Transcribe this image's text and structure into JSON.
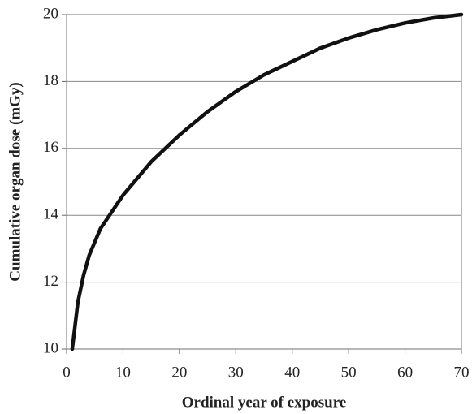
{
  "chart_data": {
    "type": "line",
    "x_label": "Ordinal year of exposure",
    "y_label": "Cumulative organ dose (mGy)",
    "x": [
      1,
      2,
      3,
      4,
      5,
      6,
      8,
      10,
      12,
      15,
      20,
      25,
      30,
      35,
      40,
      45,
      50,
      55,
      60,
      65,
      70
    ],
    "series": [
      {
        "color": "#111111",
        "values": [
          10,
          11.4,
          12.2,
          12.8,
          13.2,
          13.6,
          14.1,
          14.6,
          15.0,
          15.6,
          16.4,
          17.1,
          17.7,
          18.2,
          18.6,
          19.0,
          19.3,
          19.55,
          19.75,
          19.9,
          20
        ]
      }
    ],
    "xlim": [
      0,
      70
    ],
    "xticks": [
      0,
      10,
      20,
      30,
      40,
      50,
      60,
      70
    ],
    "ylim": [
      10,
      20
    ],
    "yticks": [
      10,
      12,
      14,
      16,
      18,
      20
    ],
    "grid": true
  }
}
